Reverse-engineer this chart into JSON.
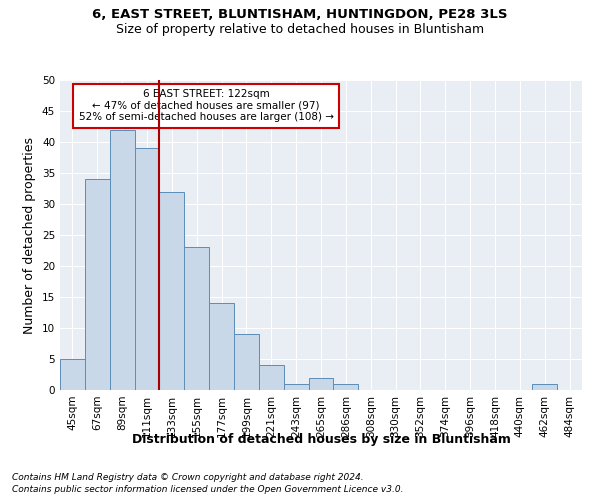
{
  "title1": "6, EAST STREET, BLUNTISHAM, HUNTINGDON, PE28 3LS",
  "title2": "Size of property relative to detached houses in Bluntisham",
  "xlabel": "Distribution of detached houses by size in Bluntisham",
  "ylabel": "Number of detached properties",
  "footnote1": "Contains HM Land Registry data © Crown copyright and database right 2024.",
  "footnote2": "Contains public sector information licensed under the Open Government Licence v3.0.",
  "bar_labels": [
    "45sqm",
    "67sqm",
    "89sqm",
    "111sqm",
    "133sqm",
    "155sqm",
    "177sqm",
    "199sqm",
    "221sqm",
    "243sqm",
    "265sqm",
    "286sqm",
    "308sqm",
    "330sqm",
    "352sqm",
    "374sqm",
    "396sqm",
    "418sqm",
    "440sqm",
    "462sqm",
    "484sqm"
  ],
  "bar_values": [
    5,
    34,
    42,
    39,
    32,
    23,
    14,
    9,
    4,
    1,
    2,
    1,
    0,
    0,
    0,
    0,
    0,
    0,
    0,
    1,
    0
  ],
  "bar_color": "#c8d8e8",
  "bar_edgecolor": "#5b8db8",
  "vline_color": "#aa0000",
  "annotation_box_text": "6 EAST STREET: 122sqm\n← 47% of detached houses are smaller (97)\n52% of semi-detached houses are larger (108) →",
  "annotation_box_color": "#cc0000",
  "annotation_box_facecolor": "white",
  "ylim": [
    0,
    50
  ],
  "yticks": [
    0,
    5,
    10,
    15,
    20,
    25,
    30,
    35,
    40,
    45,
    50
  ],
  "background_color": "#e8eef4",
  "grid_color": "#ffffff",
  "title_fontsize": 9.5,
  "subtitle_fontsize": 9,
  "axis_label_fontsize": 9,
  "tick_fontsize": 7.5,
  "footnote_fontsize": 6.5
}
